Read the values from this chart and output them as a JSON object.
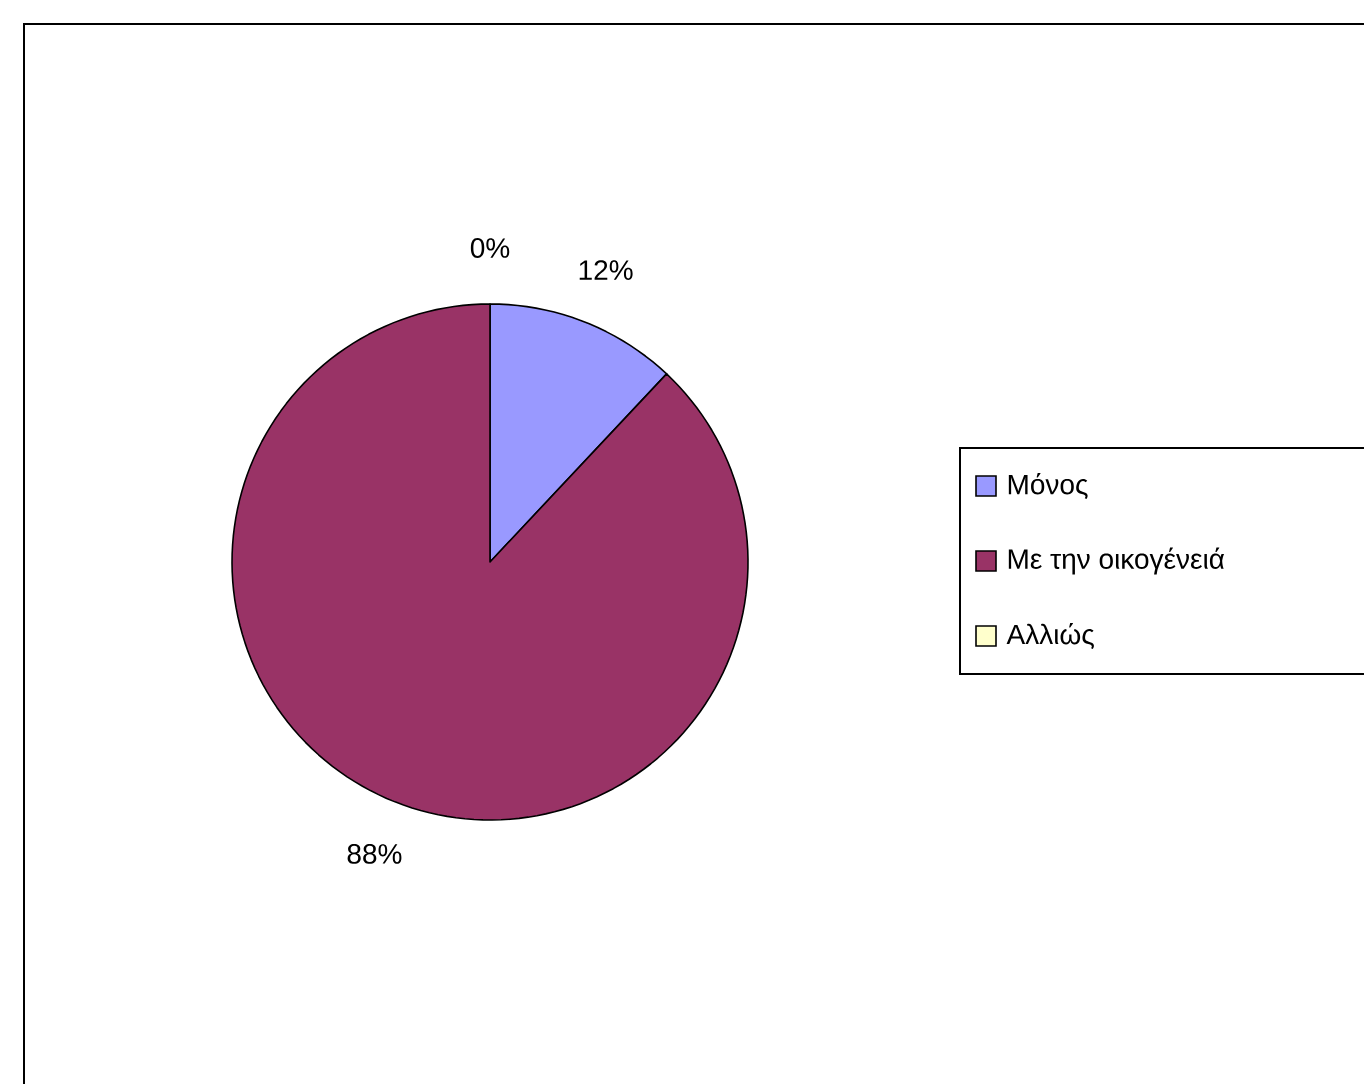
{
  "chart_data": {
    "type": "pie",
    "categories": [
      "Μόνος",
      "Με την οικογένειά",
      "Αλλιώς"
    ],
    "values": [
      12,
      88,
      0
    ],
    "colors": [
      "#9999ff",
      "#993366",
      "#ffffcc"
    ],
    "value_labels": [
      "12%",
      "88%",
      "0%"
    ],
    "legend": "right"
  }
}
